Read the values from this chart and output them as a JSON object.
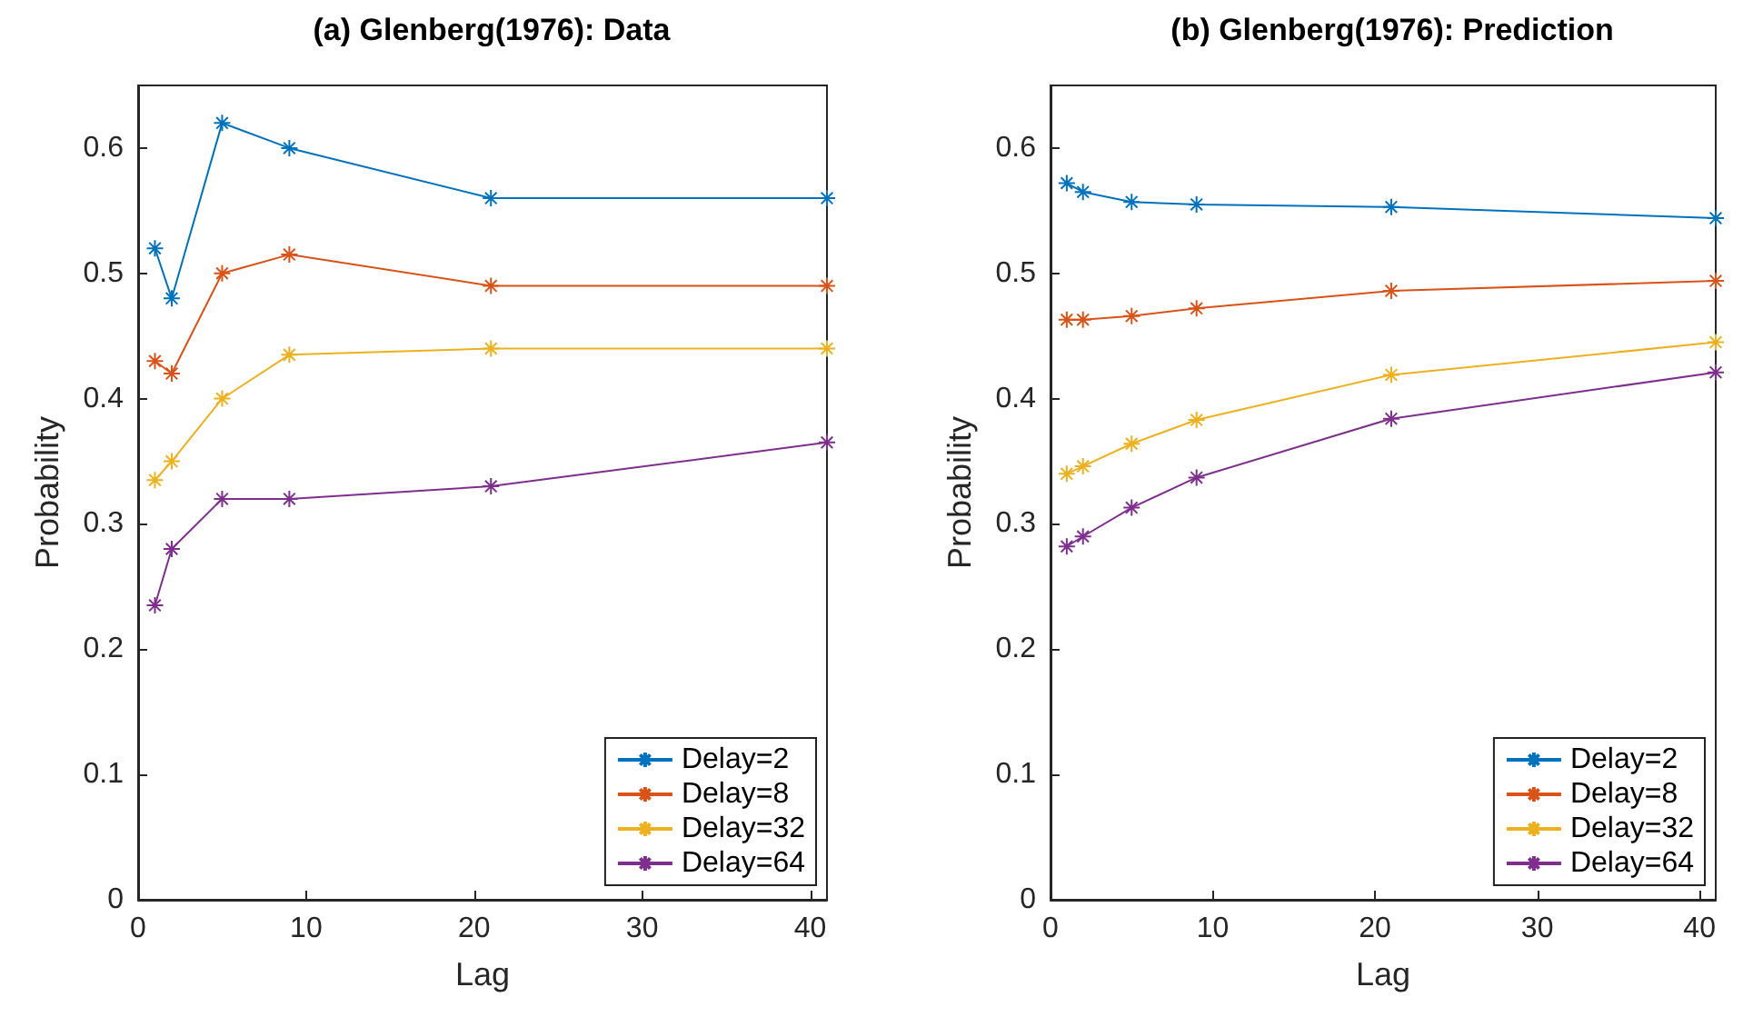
{
  "chart_data": [
    {
      "type": "line",
      "title": "(a) Glenberg(1976): Data",
      "xlabel": "Lag",
      "ylabel": "Probability",
      "x": [
        1,
        2,
        5,
        9,
        21,
        41
      ],
      "xlim": [
        0,
        41
      ],
      "xticks": [
        0,
        10,
        20,
        30,
        40
      ],
      "ylim": [
        0,
        0.65
      ],
      "yticks": [
        0,
        0.1,
        0.2,
        0.3,
        0.4,
        0.5,
        0.6
      ],
      "marker": "cross",
      "grid": false,
      "legend": "bottom right",
      "series": [
        {
          "name": "Delay=2",
          "color": "#0072bd",
          "values": [
            0.52,
            0.48,
            0.62,
            0.6,
            0.56,
            0.56
          ]
        },
        {
          "name": "Delay=8",
          "color": "#d95319",
          "values": [
            0.43,
            0.42,
            0.5,
            0.515,
            0.49,
            0.49
          ]
        },
        {
          "name": "Delay=32",
          "color": "#edb120",
          "values": [
            0.335,
            0.35,
            0.4,
            0.435,
            0.44,
            0.44
          ]
        },
        {
          "name": "Delay=64",
          "color": "#7e2f8e",
          "values": [
            0.235,
            0.28,
            0.32,
            0.32,
            0.33,
            0.365
          ]
        }
      ]
    },
    {
      "type": "line",
      "title": "(b) Glenberg(1976): Prediction",
      "xlabel": "Lag",
      "ylabel": "Probability",
      "x": [
        1,
        2,
        5,
        9,
        21,
        41
      ],
      "xlim": [
        0,
        41
      ],
      "xticks": [
        0,
        10,
        20,
        30,
        40
      ],
      "ylim": [
        0,
        0.65
      ],
      "yticks": [
        0,
        0.1,
        0.2,
        0.3,
        0.4,
        0.5,
        0.6
      ],
      "marker": "cross",
      "grid": false,
      "legend": "bottom right",
      "series": [
        {
          "name": "Delay=2",
          "color": "#0072bd",
          "values": [
            0.572,
            0.565,
            0.557,
            0.555,
            0.553,
            0.544
          ]
        },
        {
          "name": "Delay=8",
          "color": "#d95319",
          "values": [
            0.463,
            0.463,
            0.466,
            0.472,
            0.486,
            0.494
          ]
        },
        {
          "name": "Delay=32",
          "color": "#edb120",
          "values": [
            0.34,
            0.346,
            0.364,
            0.383,
            0.419,
            0.445
          ]
        },
        {
          "name": "Delay=64",
          "color": "#7e2f8e",
          "values": [
            0.282,
            0.29,
            0.313,
            0.337,
            0.384,
            0.421
          ]
        }
      ]
    }
  ]
}
